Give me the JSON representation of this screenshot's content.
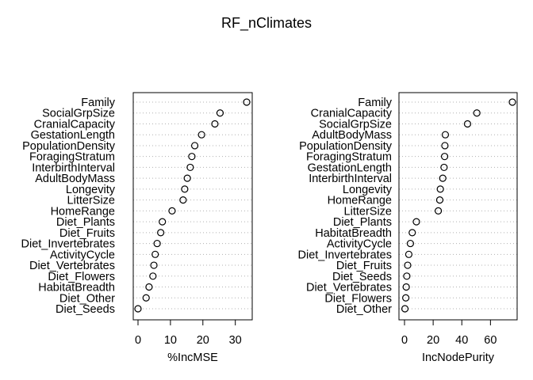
{
  "title": "RF_nClimates",
  "chart_data": [
    {
      "type": "scatter",
      "xlabel": "%IncMSE",
      "xlim": [
        0,
        33.5
      ],
      "xticks": [
        0,
        10,
        20,
        30
      ],
      "grid": "horizontal dotted",
      "categories": [
        "Family",
        "SocialGrpSize",
        "CranialCapacity",
        "GestationLength",
        "PopulationDensity",
        "ForagingStratum",
        "InterbirthInterval",
        "AdultBodyMass",
        "Longevity",
        "LitterSize",
        "HomeRange",
        "Diet_Plants",
        "Diet_Fruits",
        "Diet_Invertebrates",
        "ActivityCycle",
        "Diet_Vertebrates",
        "Diet_Flowers",
        "HabitatBreadth",
        "Diet_Other",
        "Diet_Seeds"
      ],
      "values": [
        33.5,
        25.3,
        23.7,
        19.6,
        17.5,
        16.6,
        16.1,
        15.2,
        14.4,
        13.9,
        10.5,
        7.5,
        7.0,
        5.9,
        5.3,
        4.9,
        4.6,
        3.4,
        2.5,
        0.0
      ]
    },
    {
      "type": "scatter",
      "xlabel": "IncNodePurity",
      "xlim": [
        0,
        75.3
      ],
      "xticks": [
        0,
        20,
        40,
        60
      ],
      "grid": "horizontal dotted",
      "categories": [
        "Family",
        "CranialCapacity",
        "SocialGrpSize",
        "AdultBodyMass",
        "PopulationDensity",
        "ForagingStratum",
        "GestationLength",
        "InterbirthInterval",
        "Longevity",
        "HomeRange",
        "LitterSize",
        "Diet_Plants",
        "HabitatBreadth",
        "ActivityCycle",
        "Diet_Invertebrates",
        "Diet_Fruits",
        "Diet_Seeds",
        "Diet_Vertebrates",
        "Diet_Flowers",
        "Diet_Other"
      ],
      "values": [
        75.3,
        50.5,
        44.0,
        28.5,
        28.2,
        28.0,
        27.6,
        26.7,
        25.0,
        24.6,
        23.6,
        8.3,
        5.4,
        4.1,
        3.0,
        2.2,
        1.6,
        1.2,
        0.9,
        0.3
      ]
    }
  ]
}
